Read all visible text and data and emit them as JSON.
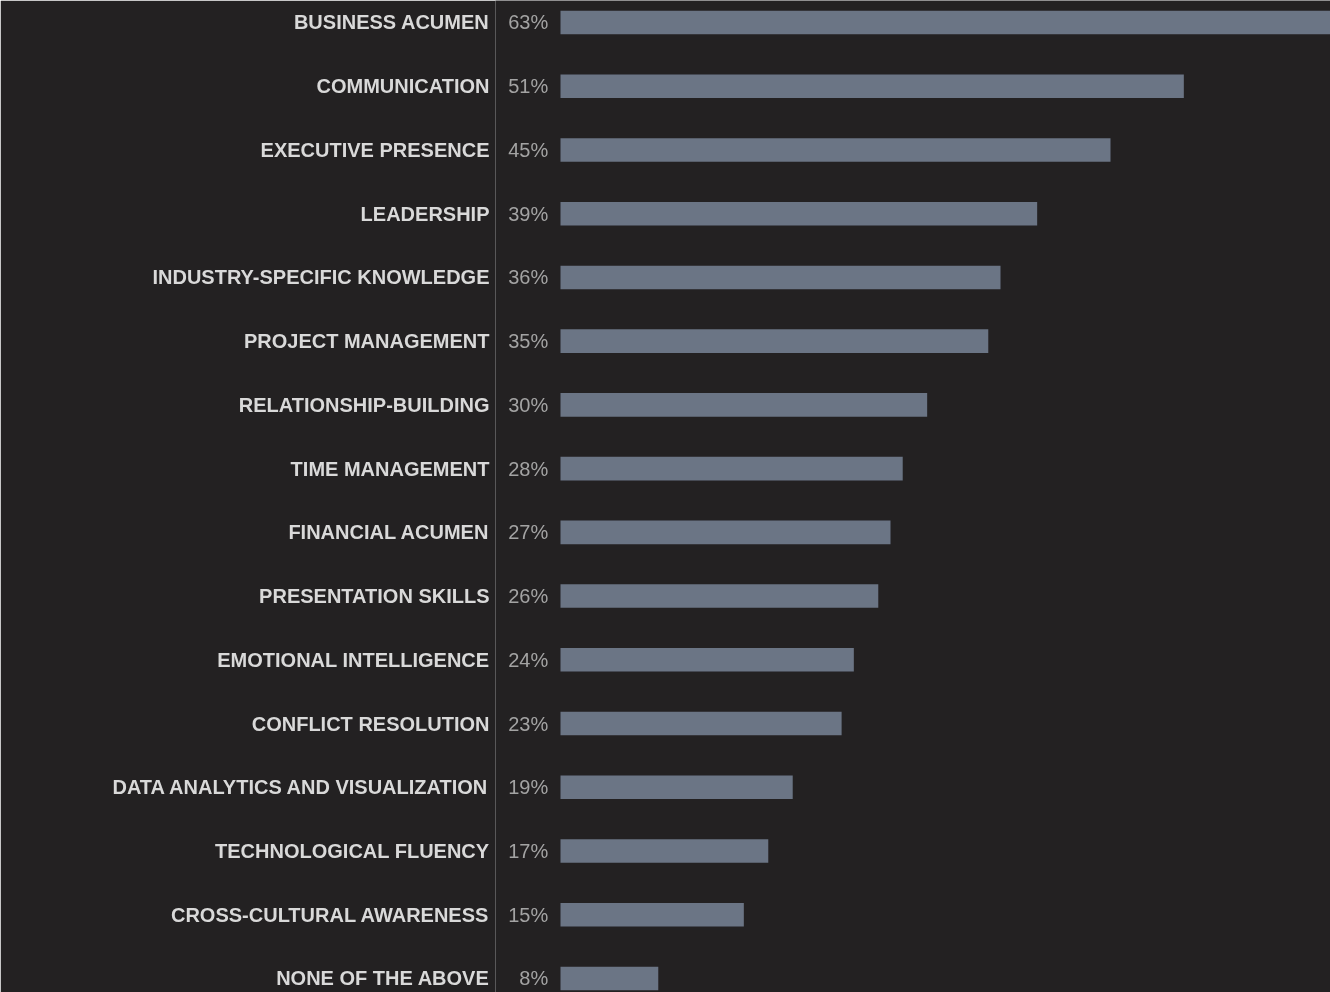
{
  "chart_data": {
    "type": "bar",
    "orientation": "horizontal",
    "color": "#6b7585",
    "categories": [
      "BUSINESS ACUMEN",
      "COMMUNICATION",
      "EXECUTIVE PRESENCE",
      "LEADERSHIP",
      "INDUSTRY-SPECIFIC KNOWLEDGE",
      "PROJECT MANAGEMENT",
      "RELATIONSHIP-BUILDING",
      "TIME MANAGEMENT",
      "FINANCIAL ACUMEN",
      "PRESENTATION SKILLS",
      "EMOTIONAL INTELLIGENCE",
      "CONFLICT RESOLUTION",
      "DATA ANALYTICS AND VISUALIZATION",
      "TECHNOLOGICAL FLUENCY",
      "CROSS-CULTURAL AWARENESS",
      "NONE OF THE ABOVE"
    ],
    "values": [
      63,
      51,
      45,
      39,
      36,
      35,
      30,
      28,
      27,
      26,
      24,
      23,
      19,
      17,
      15,
      8
    ],
    "value_labels": [
      "63%",
      "51%",
      "45%",
      "39%",
      "36%",
      "35%",
      "30%",
      "28%",
      "27%",
      "26%",
      "24%",
      "23%",
      "19%",
      "17%",
      "15%",
      "8%"
    ]
  }
}
